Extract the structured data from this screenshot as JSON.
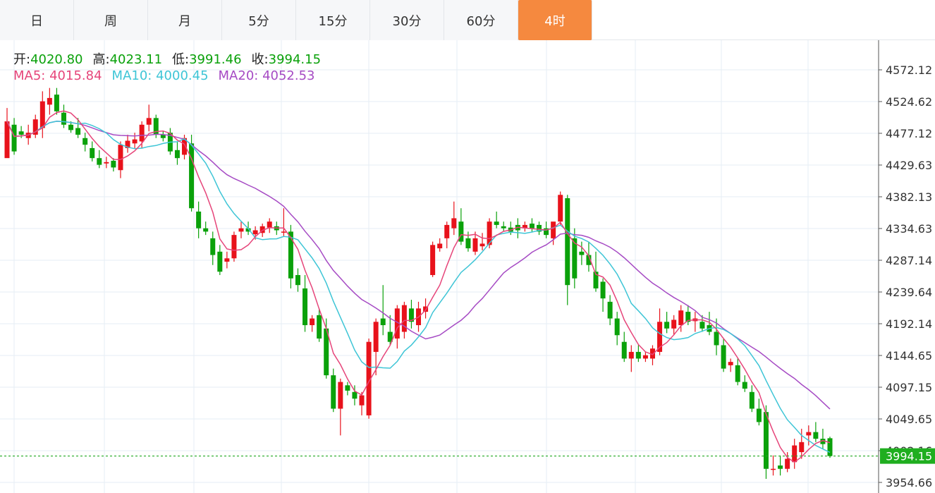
{
  "tabs": [
    {
      "label": "日"
    },
    {
      "label": "周"
    },
    {
      "label": "月"
    },
    {
      "label": "5分"
    },
    {
      "label": "15分"
    },
    {
      "label": "30分"
    },
    {
      "label": "60分"
    },
    {
      "label": "4时"
    }
  ],
  "active_tab": "4时",
  "ohlc_info": {
    "open_label": "开:",
    "open": "4020.80",
    "high_label": "高:",
    "high": "4023.11",
    "low_label": "低:",
    "low": "3991.46",
    "close_label": "收:",
    "close": "3994.15"
  },
  "ma_info": {
    "ma5_label": "MA5:",
    "ma5": "4015.84",
    "ma10_label": "MA10:",
    "ma10": "4000.45",
    "ma20_label": "MA20:",
    "ma20": "4052.53"
  },
  "colors": {
    "up": "#e8121b",
    "down": "#0aa10a",
    "ma5": "#e6457a",
    "ma10": "#3ec5d6",
    "ma20": "#a64bc4",
    "grid": "#e6eef4",
    "price_line": "#22aa22",
    "price_badge": "#1fae1f",
    "active_tab": "#f5893f"
  },
  "chart_data": {
    "type": "candlestick",
    "y_axis_ticks": [
      "4572.12",
      "4524.62",
      "4477.12",
      "4429.63",
      "4382.13",
      "4334.63",
      "4287.14",
      "4239.64",
      "4192.14",
      "4144.65",
      "4097.15",
      "4049.65",
      "4002.16",
      "3954.66"
    ],
    "ylim": [
      3940,
      4620
    ],
    "current_price": "3994.15",
    "candles": [
      [
        4440,
        4515,
        4445,
        4495
      ],
      [
        4490,
        4500,
        4445,
        4450
      ],
      [
        4480,
        4488,
        4470,
        4475
      ],
      [
        4470,
        4490,
        4460,
        4478
      ],
      [
        4475,
        4505,
        4470,
        4498
      ],
      [
        4485,
        4540,
        4470,
        4525
      ],
      [
        4520,
        4545,
        4505,
        4530
      ],
      [
        4535,
        4545,
        4505,
        4510
      ],
      [
        4508,
        4520,
        4485,
        4490
      ],
      [
        4490,
        4495,
        4478,
        4482
      ],
      [
        4485,
        4500,
        4470,
        4475
      ],
      [
        4470,
        4478,
        4450,
        4460
      ],
      [
        4455,
        4465,
        4435,
        4440
      ],
      [
        4440,
        4452,
        4425,
        4430
      ],
      [
        4432,
        4442,
        4425,
        4434
      ],
      [
        4436,
        4440,
        4420,
        4426
      ],
      [
        4422,
        4465,
        4410,
        4460
      ],
      [
        4455,
        4475,
        4448,
        4466
      ],
      [
        4462,
        4478,
        4455,
        4468
      ],
      [
        4465,
        4495,
        4455,
        4490
      ],
      [
        4490,
        4520,
        4480,
        4500
      ],
      [
        4500,
        4505,
        4470,
        4475
      ],
      [
        4475,
        4480,
        4465,
        4470
      ],
      [
        4478,
        4485,
        4445,
        4450
      ],
      [
        4452,
        4465,
        4430,
        4440
      ],
      [
        4445,
        4475,
        4438,
        4470
      ],
      [
        4462,
        4475,
        4360,
        4365
      ],
      [
        4360,
        4375,
        4320,
        4335
      ],
      [
        4335,
        4345,
        4325,
        4330
      ],
      [
        4320,
        4330,
        4280,
        4295
      ],
      [
        4300,
        4310,
        4265,
        4270
      ],
      [
        4285,
        4300,
        4275,
        4290
      ],
      [
        4290,
        4330,
        4285,
        4325
      ],
      [
        4330,
        4345,
        4320,
        4335
      ],
      [
        4335,
        4345,
        4325,
        4330
      ],
      [
        4326,
        4338,
        4318,
        4332
      ],
      [
        4328,
        4342,
        4322,
        4338
      ],
      [
        4336,
        4350,
        4328,
        4345
      ],
      [
        4338,
        4345,
        4325,
        4332
      ],
      [
        4330,
        4365,
        4322,
        4330
      ],
      [
        4330,
        4340,
        4245,
        4260
      ],
      [
        4265,
        4275,
        4240,
        4250
      ],
      [
        4245,
        4265,
        4180,
        4190
      ],
      [
        4190,
        4205,
        4180,
        4200
      ],
      [
        4205,
        4215,
        4165,
        4170
      ],
      [
        4185,
        4200,
        4110,
        4115
      ],
      [
        4115,
        4125,
        4060,
        4065
      ],
      [
        4065,
        4110,
        4025,
        4105
      ],
      [
        4100,
        4105,
        4085,
        4092
      ],
      [
        4090,
        4100,
        4070,
        4080
      ],
      [
        4070,
        4090,
        4055,
        4085
      ],
      [
        4055,
        4170,
        4050,
        4165
      ],
      [
        4150,
        4200,
        4115,
        4195
      ],
      [
        4200,
        4250,
        4175,
        4190
      ],
      [
        4180,
        4205,
        4160,
        4165
      ],
      [
        4170,
        4220,
        4155,
        4215
      ],
      [
        4180,
        4225,
        4170,
        4220
      ],
      [
        4215,
        4228,
        4185,
        4195
      ],
      [
        4190,
        4225,
        4180,
        4215
      ],
      [
        4210,
        4230,
        4200,
        4218
      ],
      [
        4265,
        4315,
        4262,
        4310
      ],
      [
        4305,
        4320,
        4300,
        4312
      ],
      [
        4320,
        4345,
        4305,
        4340
      ],
      [
        4335,
        4375,
        4325,
        4350
      ],
      [
        4345,
        4365,
        4310,
        4315
      ],
      [
        4320,
        4330,
        4300,
        4305
      ],
      [
        4300,
        4330,
        4295,
        4320
      ],
      [
        4308,
        4328,
        4302,
        4312
      ],
      [
        4310,
        4350,
        4305,
        4345
      ],
      [
        4345,
        4360,
        4335,
        4340
      ],
      [
        4338,
        4345,
        4330,
        4335
      ],
      [
        4336,
        4345,
        4325,
        4330
      ],
      [
        4340,
        4350,
        4320,
        4332
      ],
      [
        4335,
        4345,
        4330,
        4340
      ],
      [
        4342,
        4350,
        4330,
        4335
      ],
      [
        4340,
        4345,
        4325,
        4330
      ],
      [
        4335,
        4345,
        4320,
        4325
      ],
      [
        4320,
        4340,
        4310,
        4345
      ],
      [
        4345,
        4390,
        4340,
        4385
      ],
      [
        4380,
        4385,
        4220,
        4250
      ],
      [
        4320,
        4335,
        4245,
        4260
      ],
      [
        4300,
        4315,
        4280,
        4295
      ],
      [
        4295,
        4315,
        4270,
        4280
      ],
      [
        4270,
        4300,
        4240,
        4245
      ],
      [
        4255,
        4260,
        4210,
        4230
      ],
      [
        4225,
        4235,
        4190,
        4200
      ],
      [
        4200,
        4210,
        4160,
        4175
      ],
      [
        4165,
        4180,
        4135,
        4140
      ],
      [
        4140,
        4160,
        4120,
        4150
      ],
      [
        4150,
        4160,
        4135,
        4140
      ],
      [
        4140,
        4150,
        4135,
        4145
      ],
      [
        4140,
        4160,
        4130,
        4155
      ],
      [
        4150,
        4215,
        4145,
        4195
      ],
      [
        4195,
        4210,
        4178,
        4185
      ],
      [
        4185,
        4205,
        4175,
        4198
      ],
      [
        4190,
        4220,
        4180,
        4212
      ],
      [
        4210,
        4220,
        4190,
        4195
      ],
      [
        4196,
        4210,
        4180,
        4200
      ],
      [
        4195,
        4205,
        4180,
        4185
      ],
      [
        4190,
        4210,
        4175,
        4180
      ],
      [
        4180,
        4200,
        4145,
        4160
      ],
      [
        4160,
        4170,
        4120,
        4125
      ],
      [
        4130,
        4140,
        4120,
        4135
      ],
      [
        4130,
        4140,
        4100,
        4105
      ],
      [
        4105,
        4115,
        4090,
        4095
      ],
      [
        4090,
        4100,
        4060,
        4065
      ],
      [
        4065,
        4080,
        4040,
        4045
      ],
      [
        4060,
        4070,
        3960,
        3975
      ],
      [
        3975,
        3995,
        3965,
        3975
      ],
      [
        3980,
        3995,
        3965,
        3975
      ],
      [
        3975,
        4000,
        3970,
        3990
      ],
      [
        3985,
        4020,
        3975,
        4010
      ],
      [
        4000,
        4035,
        3990,
        4015
      ],
      [
        4025,
        4040,
        4010,
        4030
      ],
      [
        4030,
        4045,
        4015,
        4020
      ],
      [
        4020,
        4035,
        4005,
        4012
      ],
      [
        4020.8,
        4023.11,
        3991.46,
        3994.15
      ]
    ]
  }
}
